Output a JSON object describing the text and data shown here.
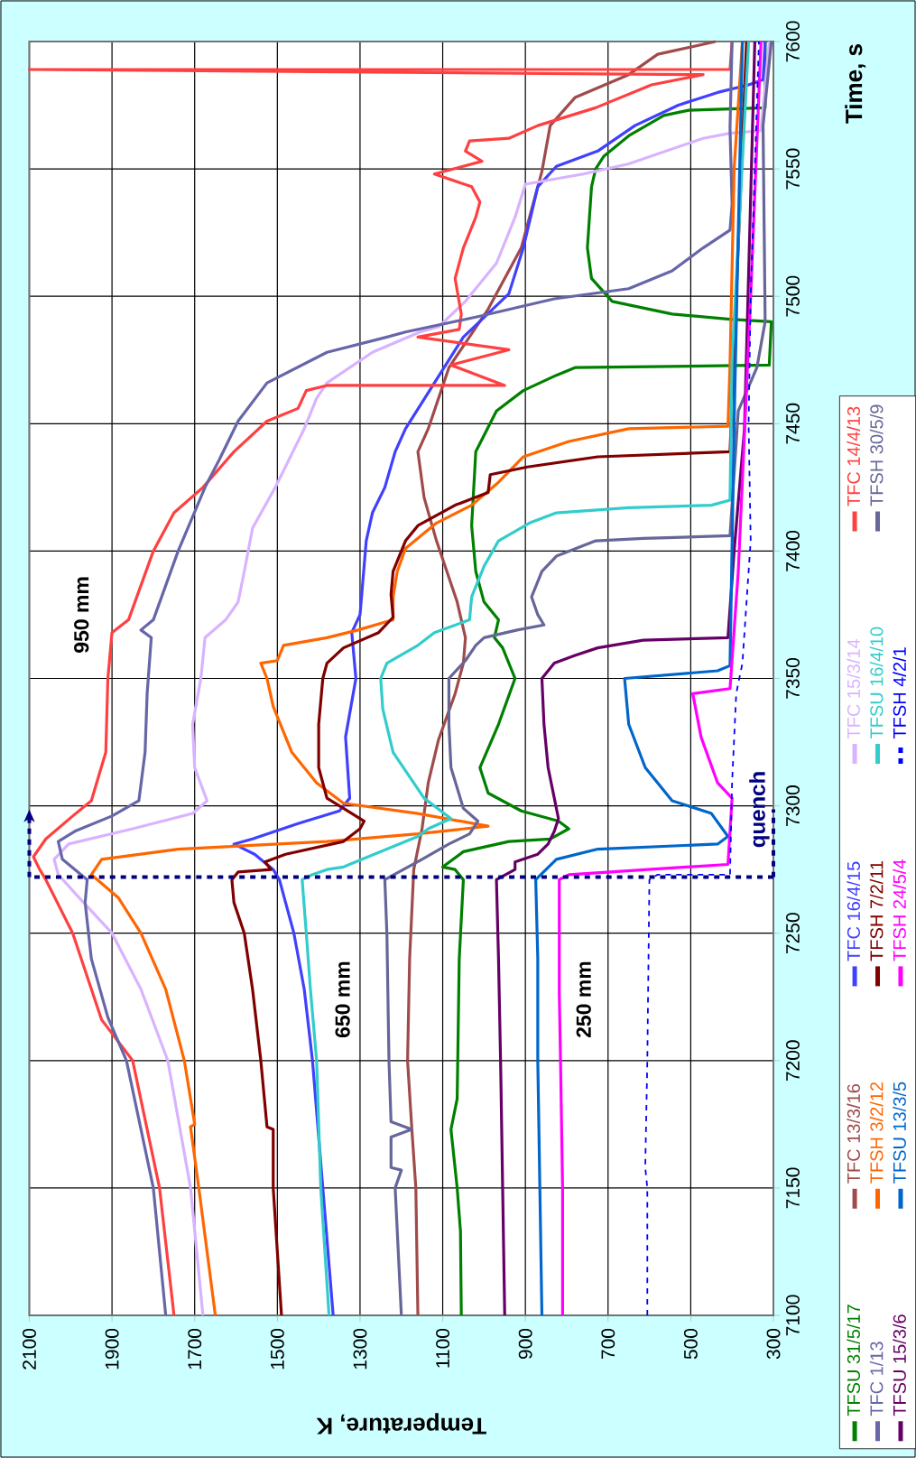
{
  "chart_data": {
    "type": "line",
    "xlabel": "Temperature, K",
    "ylabel": "Time, s",
    "xlim": [
      2100,
      300
    ],
    "ylim": [
      7100,
      7600
    ],
    "xticks": [
      2100,
      1900,
      1700,
      1500,
      1300,
      1100,
      900,
      700,
      500,
      300
    ],
    "yticks": [
      7100,
      7150,
      7200,
      7250,
      7300,
      7350,
      7400,
      7450,
      7500,
      7550,
      7600
    ],
    "grid": true,
    "legend": "right",
    "series": [
      {
        "name": "TFSU 31/5/17",
        "color": "#008000",
        "values": [
          7100,
          7133,
          7150,
          7173,
          7185,
          7240,
          7271,
          7275,
          7276,
          7282,
          7286,
          7287,
          7291,
          7294,
          7298,
          7305,
          7315,
          7332,
          7350,
          7362,
          7366,
          7373,
          7380,
          7392,
          7410,
          7439,
          7455,
          7463,
          7469,
          7472,
          7473,
          7490,
          7491,
          7493,
          7498,
          7507,
          7519,
          7543,
          7550,
          7555,
          7563,
          7571,
          7573,
          7574,
          7600
        ],
        "x": [
          1055,
          1057,
          1065,
          1080,
          1065,
          1060,
          1050,
          1070,
          1100,
          1050,
          940,
          840,
          795,
          820,
          910,
          990,
          1010,
          965,
          925,
          955,
          975,
          965,
          1000,
          1020,
          1030,
          1020,
          970,
          905,
          825,
          780,
          310,
          305,
          405,
          545,
          690,
          740,
          750,
          740,
          730,
          710,
          650,
          565,
          505,
          320,
          320
        ]
      },
      {
        "name": "TFC 13/3/16",
        "color": "#a04b4b",
        "values": [
          7100,
          7150,
          7174,
          7200,
          7240,
          7275,
          7291,
          7309,
          7326,
          7344,
          7356,
          7366,
          7380,
          7404,
          7421,
          7439,
          7448,
          7472,
          7495,
          7519,
          7549,
          7567,
          7578,
          7587,
          7595,
          7600
        ],
        "x": [
          1160,
          1165,
          1175,
          1185,
          1180,
          1170,
          1150,
          1135,
          1110,
          1070,
          1050,
          1045,
          1065,
          1115,
          1145,
          1160,
          1135,
          1085,
          990,
          910,
          860,
          840,
          780,
          650,
          580,
          440
        ]
      },
      {
        "name": "TFC 16/4/15",
        "color": "#4040ff",
        "values": [
          7100,
          7150,
          7200,
          7228,
          7250,
          7262,
          7271,
          7275,
          7281,
          7285,
          7287,
          7293,
          7298,
          7303,
          7327,
          7350,
          7368,
          7375,
          7404,
          7415,
          7425,
          7439,
          7448,
          7466,
          7484,
          7501,
          7519,
          7543,
          7551,
          7557,
          7567,
          7575,
          7580,
          7583,
          7585,
          7600
        ],
        "x": [
          1365,
          1390,
          1415,
          1435,
          1460,
          1480,
          1495,
          1510,
          1555,
          1605,
          1560,
          1450,
          1350,
          1325,
          1335,
          1310,
          1320,
          1300,
          1285,
          1270,
          1240,
          1215,
          1190,
          1120,
          1050,
          940,
          905,
          870,
          825,
          725,
          635,
          530,
          435,
          360,
          325,
          320
        ]
      },
      {
        "name": "TFC 15/3/14",
        "color": "#d9b3ff",
        "values": [
          7100,
          7150,
          7200,
          7228,
          7250,
          7264,
          7273,
          7279,
          7285,
          7291,
          7297,
          7302,
          7315,
          7332,
          7350,
          7366,
          7373,
          7380,
          7392,
          7409,
          7425,
          7448,
          7460,
          7466,
          7478,
          7486,
          7488,
          7498,
          7513,
          7531,
          7544,
          7548,
          7552,
          7562,
          7564,
          7565,
          7600
        ],
        "x": [
          1680,
          1710,
          1765,
          1830,
          1900,
          1980,
          2030,
          2040,
          2005,
          1850,
          1705,
          1670,
          1700,
          1705,
          1685,
          1675,
          1625,
          1595,
          1580,
          1560,
          1505,
          1435,
          1405,
          1380,
          1270,
          1155,
          1110,
          1045,
          970,
          925,
          900,
          760,
          650,
          470,
          405,
          330,
          310
        ]
      },
      {
        "name": "TFC 14/4/13",
        "color": "#ff4040",
        "values": [
          7100,
          7150,
          7200,
          7216,
          7250,
          7271,
          7275,
          7280,
          7287,
          7296,
          7302,
          7321,
          7350,
          7368,
          7373,
          7400,
          7415,
          7425,
          7439,
          7451,
          7456,
          7463,
          7465,
          7465,
          7473,
          7479,
          7484,
          7487,
          7493,
          7507,
          7519,
          7531,
          7537,
          7543,
          7548,
          7553,
          7557,
          7561,
          7562,
          7567,
          7574,
          7583,
          7587,
          7589,
          7589,
          7600
        ],
        "x": [
          1750,
          1785,
          1850,
          1925,
          1995,
          2060,
          2075,
          2090,
          2060,
          1995,
          1950,
          1915,
          1910,
          1900,
          1860,
          1800,
          1750,
          1680,
          1605,
          1525,
          1450,
          1430,
          1380,
          950,
          1080,
          940,
          1160,
          1060,
          1055,
          1070,
          1050,
          1020,
          1010,
          1030,
          1120,
          1005,
          1045,
          1035,
          940,
          870,
          730,
          595,
          470,
          2100,
          405,
          400
        ]
      },
      {
        "name": "TFC 1/13",
        "color": "#6666a8",
        "values": [
          7100,
          7150,
          7200,
          7217,
          7240,
          7262,
          7271,
          7279,
          7286,
          7290,
          7296,
          7302,
          7321,
          7344,
          7366,
          7369,
          7373,
          7400,
          7425,
          7436,
          7451,
          7466,
          7478,
          7484,
          7486,
          7492,
          7499,
          7503,
          7510,
          7519,
          7526,
          7536,
          7566,
          7600
        ],
        "x": [
          1770,
          1800,
          1865,
          1910,
          1950,
          1965,
          1960,
          2020,
          2030,
          1990,
          1900,
          1835,
          1820,
          1815,
          1805,
          1830,
          1800,
          1740,
          1675,
          1640,
          1595,
          1525,
          1380,
          1235,
          1190,
          1015,
          830,
          650,
          545,
          470,
          405,
          400,
          405,
          400
        ]
      },
      {
        "name": "TFSH 3/2/12",
        "color": "#ff6600",
        "values": [
          7100,
          7150,
          7174,
          7175,
          7200,
          7228,
          7250,
          7264,
          7273,
          7279,
          7283,
          7286,
          7289,
          7292,
          7297,
          7301,
          7309,
          7321,
          7339,
          7350,
          7356,
          7357,
          7363,
          7366,
          7369,
          7373,
          7382,
          7392,
          7401,
          7411,
          7418,
          7427,
          7437,
          7443,
          7448,
          7449,
          7473,
          7550,
          7600
        ],
        "x": [
          1650,
          1690,
          1710,
          1700,
          1725,
          1770,
          1830,
          1885,
          1950,
          1925,
          1740,
          1380,
          1160,
          990,
          1160,
          1340,
          1405,
          1465,
          1510,
          1525,
          1540,
          1500,
          1485,
          1380,
          1305,
          1220,
          1220,
          1210,
          1190,
          1115,
          1030,
          965,
          905,
          795,
          650,
          410,
          405,
          395,
          375
        ]
      },
      {
        "name": "TFSH 7/2/11",
        "color": "#800000",
        "values": [
          7100,
          7150,
          7173,
          7174,
          7200,
          7228,
          7250,
          7262,
          7271,
          7274,
          7275,
          7278,
          7281,
          7286,
          7291,
          7294,
          7299,
          7303,
          7315,
          7332,
          7350,
          7356,
          7362,
          7368,
          7374,
          7383,
          7392,
          7404,
          7410,
          7418,
          7423,
          7430,
          7433,
          7437,
          7439,
          7500,
          7600
        ],
        "x": [
          1490,
          1510,
          1510,
          1525,
          1540,
          1560,
          1580,
          1605,
          1610,
          1595,
          1515,
          1530,
          1480,
          1340,
          1300,
          1290,
          1340,
          1380,
          1400,
          1400,
          1390,
          1380,
          1340,
          1255,
          1220,
          1225,
          1220,
          1190,
          1160,
          1070,
          990,
          985,
          895,
          725,
          405,
          390,
          365
        ]
      },
      {
        "name": "TFSU 16/4/10",
        "color": "#33cccc",
        "values": [
          7100,
          7150,
          7200,
          7228,
          7250,
          7271,
          7273,
          7275,
          7276,
          7283,
          7288,
          7291,
          7295,
          7303,
          7321,
          7338,
          7350,
          7356,
          7363,
          7368,
          7373,
          7382,
          7394,
          7404,
          7411,
          7415,
          7417,
          7418,
          7420,
          7475,
          7600
        ],
        "x": [
          1375,
          1395,
          1405,
          1420,
          1430,
          1440,
          1415,
          1380,
          1340,
          1235,
          1160,
          1135,
          1080,
          1145,
          1220,
          1245,
          1250,
          1235,
          1160,
          1120,
          1035,
          1030,
          1000,
          965,
          890,
          825,
          650,
          450,
          405,
          400,
          360
        ]
      },
      {
        "name": "TFSH 30/5/9",
        "color": "#666699",
        "values": [
          7100,
          7150,
          7157,
          7158,
          7170,
          7173,
          7176,
          7200,
          7250,
          7271,
          7275,
          7279,
          7285,
          7289,
          7294,
          7299,
          7315,
          7332,
          7350,
          7357,
          7363,
          7366,
          7369,
          7371,
          7375,
          7382,
          7392,
          7398,
          7404,
          7405,
          7406,
          7455,
          7472,
          7490,
          7567,
          7600
        ],
        "x": [
          1200,
          1215,
          1200,
          1225,
          1225,
          1175,
          1225,
          1230,
          1235,
          1240,
          1195,
          1150,
          1085,
          1035,
          1015,
          1050,
          1080,
          1085,
          1085,
          1045,
          1020,
          1000,
          920,
          855,
          870,
          885,
          860,
          825,
          730,
          615,
          405,
          385,
          340,
          320,
          325,
          305
        ]
      },
      {
        "name": "TFSU 15/3/6",
        "color": "#660066",
        "values": [
          7100,
          7150,
          7200,
          7240,
          7271,
          7275,
          7278,
          7281,
          7285,
          7290,
          7295,
          7303,
          7315,
          7332,
          7350,
          7356,
          7359,
          7362,
          7365,
          7366,
          7400,
          7448,
          7600
        ],
        "x": [
          950,
          955,
          960,
          965,
          970,
          925,
          925,
          870,
          845,
          830,
          820,
          830,
          845,
          855,
          860,
          830,
          780,
          725,
          615,
          410,
          395,
          370,
          345
        ]
      },
      {
        "name": "TFSU 13/3/5",
        "color": "#0066cc",
        "values": [
          7100,
          7150,
          7200,
          7240,
          7271,
          7275,
          7279,
          7283,
          7285,
          7288,
          7297,
          7302,
          7315,
          7332,
          7350,
          7353,
          7355,
          7450,
          7600
        ],
        "x": [
          860,
          865,
          870,
          870,
          875,
          850,
          825,
          725,
          435,
          410,
          450,
          545,
          610,
          650,
          660,
          435,
          405,
          395,
          375
        ]
      },
      {
        "name": "TFSH 24/5/4",
        "color": "#ff00ff",
        "values": [
          7100,
          7150,
          7200,
          7227,
          7271,
          7273,
          7277,
          7303,
          7309,
          7327,
          7344,
          7346,
          7392,
          7500,
          7600
        ],
        "x": [
          810,
          810,
          815,
          818,
          818,
          795,
          410,
          400,
          435,
          475,
          495,
          405,
          385,
          355,
          330
        ]
      },
      {
        "name": "TFSH 4/2/1",
        "color": "#0000ff",
        "line_style": "dashed",
        "values": [
          7100,
          7150,
          7158,
          7200,
          7271,
          7273,
          7273,
          7309,
          7344,
          7356,
          7380,
          7404,
          7450,
          7500,
          7550,
          7600
        ],
        "x": [
          605,
          605,
          610,
          605,
          600,
          580,
          405,
          400,
          390,
          375,
          365,
          355,
          360,
          355,
          345,
          335
        ]
      }
    ],
    "ref_lines": [
      {
        "axis": "y",
        "value": 7272,
        "label": "quench",
        "color": "#000080",
        "line_style": "dashed"
      }
    ],
    "annotations": [
      "950 mm",
      "650 mm",
      "250 mm"
    ]
  }
}
